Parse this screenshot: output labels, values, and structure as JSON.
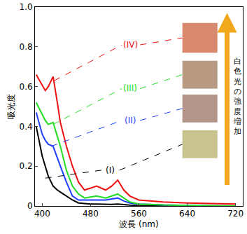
{
  "chart_data": {
    "type": "line",
    "x_label": "波長 (nm)",
    "y_label": "吸光度",
    "xlim": [
      388,
      732
    ],
    "ylim": [
      0,
      1
    ],
    "xticks": [
      400,
      480,
      560,
      640,
      720
    ],
    "yticks": [
      0,
      0.2,
      0.4,
      0.6,
      0.8,
      {
        "value": 1,
        "label": "1.0"
      }
    ],
    "grid": false,
    "x": [
      390,
      400,
      405,
      410,
      418,
      425,
      430,
      440,
      450,
      460,
      470,
      480,
      490,
      505,
      515,
      525,
      535,
      545,
      560,
      600,
      640,
      720
    ],
    "series": [
      {
        "name": "(I)",
        "color": "#000000",
        "values": [
          0.4,
          0.25,
          0.2,
          0.15,
          0.1,
          0.08,
          0.07,
          0.05,
          0.03,
          0.015,
          0.012,
          0.01,
          0.01,
          0.008,
          0.008,
          0.01,
          0.006,
          0.004,
          0.002,
          0.0,
          0.0,
          0.0
        ]
      },
      {
        "name": "(II)",
        "color": "#1f3fff",
        "values": [
          0.47,
          0.36,
          0.33,
          0.31,
          0.3,
          0.24,
          0.2,
          0.12,
          0.05,
          0.03,
          0.03,
          0.03,
          0.03,
          0.03,
          0.035,
          0.04,
          0.025,
          0.015,
          0.01,
          0.005,
          0.003,
          0.0
        ]
      },
      {
        "name": "(III)",
        "color": "#22dd22",
        "values": [
          0.52,
          0.46,
          0.43,
          0.41,
          0.42,
          0.35,
          0.3,
          0.18,
          0.1,
          0.06,
          0.04,
          0.045,
          0.05,
          0.04,
          0.05,
          0.06,
          0.04,
          0.02,
          0.01,
          0.005,
          0.003,
          0.0
        ]
      },
      {
        "name": "(IV)",
        "color": "#ee1111",
        "values": [
          0.66,
          0.61,
          0.58,
          0.6,
          0.65,
          0.52,
          0.42,
          0.3,
          0.2,
          0.12,
          0.08,
          0.09,
          0.1,
          0.08,
          0.1,
          0.13,
          0.08,
          0.05,
          0.03,
          0.02,
          0.015,
          0.01
        ]
      }
    ],
    "annotations": [
      {
        "text": "白色光の強度増加"
      }
    ]
  }
}
